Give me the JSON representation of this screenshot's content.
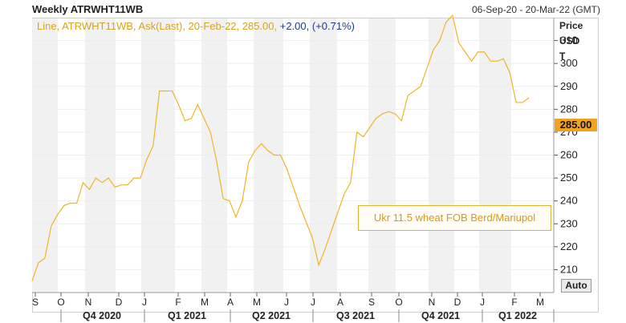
{
  "header": {
    "title": "Weekly ATRWHT11WB",
    "range": "06-Sep-20 - 20-Mar-22 (GMT)"
  },
  "legend": {
    "prefix": "Line, ATRWHT11WB, Ask(Last), 20-Feb-22, 285.00,",
    "change": " +2.00, (+0.71%)"
  },
  "axis_title": {
    "line1": "Price",
    "line2": "USD",
    "line3": "T"
  },
  "last_price_label": "285.00",
  "auto_button": "Auto",
  "annotation": "Ukr 11.5 wheat FOB Berd/Mariupol",
  "colors": {
    "line": "#f0b429",
    "price_tag": "#f1a31b",
    "band": "#f1f1f1"
  },
  "chart_data": {
    "type": "line",
    "title": "Weekly ATRWHT11WB",
    "ylabel": "Price USD T",
    "ylim": [
      200,
      320
    ],
    "yticks": [
      210,
      220,
      230,
      240,
      250,
      260,
      270,
      280,
      290,
      300,
      310
    ],
    "month_labels": [
      "S",
      "O",
      "N",
      "D",
      "J",
      "F",
      "M",
      "A",
      "M",
      "J",
      "J",
      "A",
      "S",
      "O",
      "N",
      "D",
      "J",
      "F",
      "M"
    ],
    "quarter_labels": [
      "Q4 2020",
      "Q1 2021",
      "Q2 2021",
      "Q3 2021",
      "Q4 2021",
      "Q1 2022"
    ],
    "series": [
      {
        "values": [
          205,
          213,
          215,
          229,
          234,
          238,
          239,
          239,
          248,
          245,
          250,
          248,
          250,
          246,
          247,
          247,
          250,
          250,
          258,
          264,
          288,
          288,
          288,
          282,
          275,
          276,
          282,
          276,
          270,
          257,
          241,
          240,
          233,
          240,
          257,
          262,
          265,
          262,
          260,
          260,
          254,
          246,
          238,
          231,
          224,
          212,
          219,
          227,
          235,
          243,
          248,
          270,
          268,
          272,
          276,
          278,
          279,
          278,
          275,
          286,
          288,
          290,
          298,
          306,
          310,
          318,
          321,
          309,
          305,
          301,
          305,
          305,
          301,
          301,
          302,
          296,
          283,
          283,
          285
        ]
      }
    ]
  }
}
